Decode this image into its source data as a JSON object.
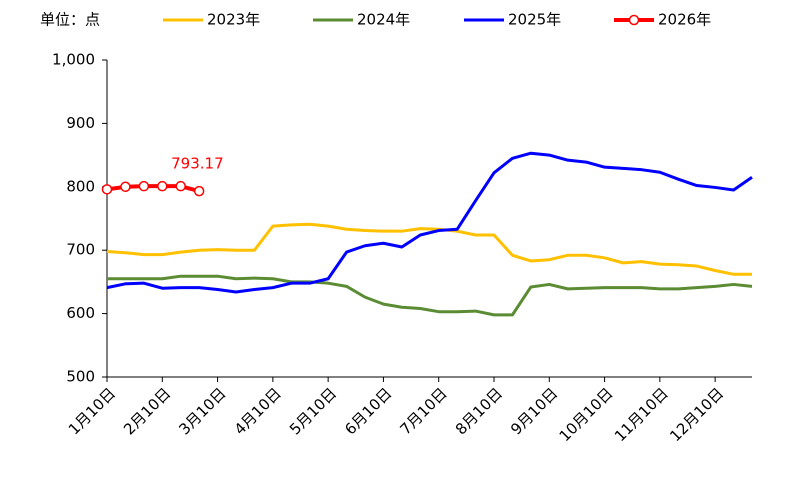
{
  "chart_data": {
    "type": "line",
    "unit_label": "单位：点",
    "categories": [
      "1月10日",
      null,
      null,
      "2月10日",
      null,
      null,
      "3月10日",
      null,
      null,
      "4月10日",
      null,
      null,
      "5月10日",
      null,
      null,
      "6月10日",
      null,
      null,
      "7月10日",
      null,
      null,
      "8月10日",
      null,
      null,
      "9月10日",
      null,
      null,
      "10月10日",
      null,
      null,
      "11月10日",
      null,
      null,
      "12月10日",
      null,
      null
    ],
    "series": [
      {
        "name": "2023年",
        "color": "#FFC000",
        "values": [
          698,
          696,
          693,
          693,
          697,
          700,
          701,
          700,
          700,
          738,
          740,
          741,
          738,
          733,
          731,
          730,
          730,
          734,
          733,
          730,
          724,
          724,
          692,
          683,
          685,
          692,
          692,
          688,
          680,
          682,
          678,
          677,
          675,
          668,
          662,
          662
        ]
      },
      {
        "name": "2024年",
        "color": "#5B8C33",
        "values": [
          655,
          655,
          655,
          655,
          659,
          659,
          659,
          655,
          656,
          655,
          650,
          650,
          648,
          643,
          626,
          615,
          610,
          608,
          603,
          603,
          604,
          598,
          598,
          642,
          646,
          639,
          640,
          641,
          641,
          641,
          639,
          639,
          641,
          643,
          646,
          643
        ]
      },
      {
        "name": "2025年",
        "color": "#0000FF",
        "values": [
          641,
          647,
          648,
          640,
          641,
          641,
          638,
          634,
          638,
          641,
          648,
          648,
          655,
          697,
          707,
          711,
          705,
          724,
          731,
          733,
          778,
          822,
          845,
          853,
          850,
          842,
          839,
          831,
          829,
          827,
          823,
          812,
          802,
          799,
          795,
          815
        ]
      },
      {
        "name": "2026年",
        "color": "#FF0000",
        "markers": true,
        "values": [
          796,
          800,
          801,
          801,
          801,
          793.17,
          null,
          null,
          null,
          null,
          null,
          null,
          null,
          null,
          null,
          null,
          null,
          null,
          null,
          null,
          null,
          null,
          null,
          null,
          null,
          null,
          null,
          null,
          null,
          null,
          null,
          null,
          null,
          null,
          null,
          null
        ]
      }
    ],
    "ylim": [
      500,
      1000
    ],
    "yticks": [
      500,
      600,
      700,
      800,
      900,
      {
        "value": 1000,
        "label": "1,000"
      }
    ]
  }
}
